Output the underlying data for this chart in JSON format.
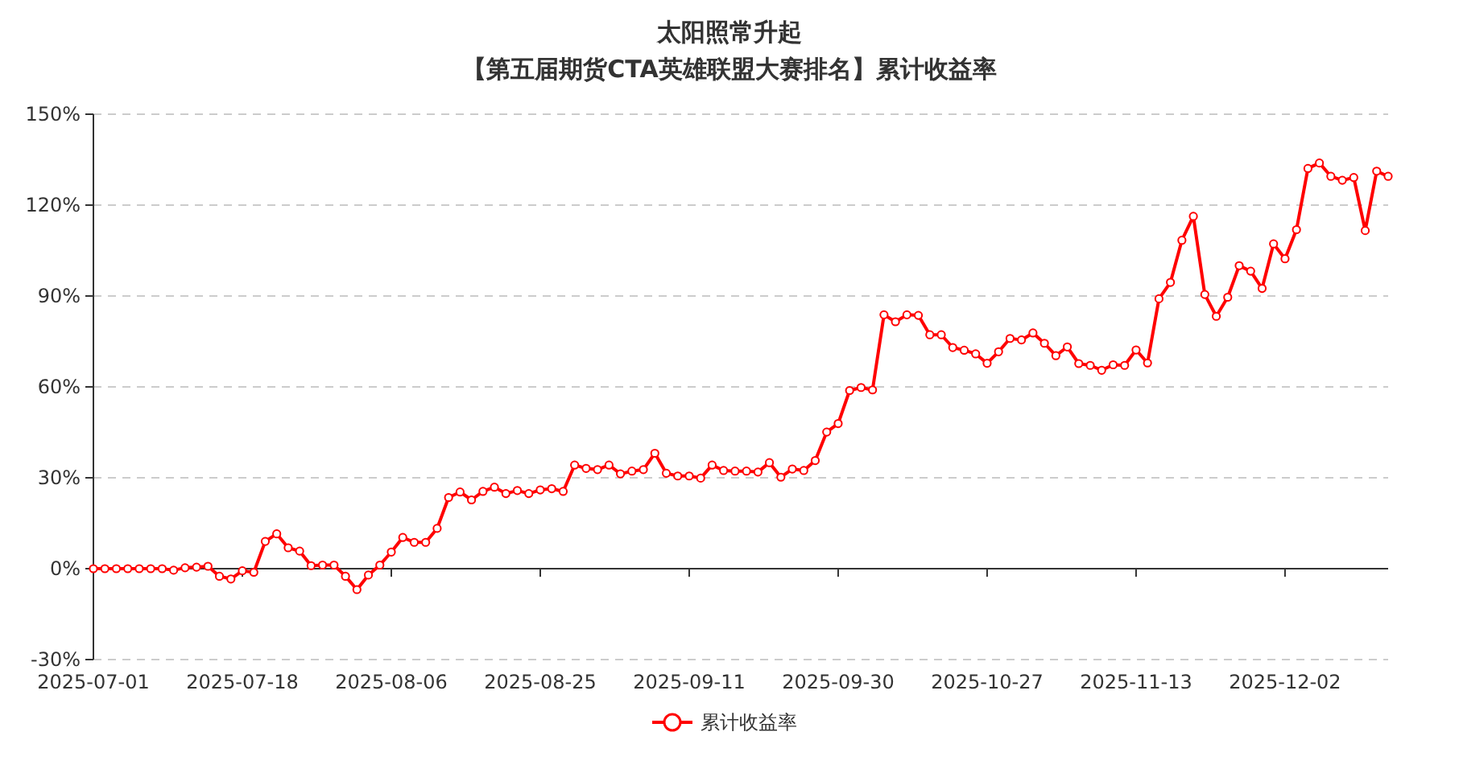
{
  "chart_data": {
    "type": "line",
    "title": "太阳照常升起",
    "subtitle": "【第五届期货CTA英雄联盟大赛排名】累计收益率",
    "categories": [
      "2025-07-01",
      null,
      null,
      null,
      null,
      null,
      null,
      null,
      null,
      null,
      null,
      null,
      null,
      "2025-07-18",
      null,
      null,
      null,
      null,
      null,
      null,
      null,
      null,
      null,
      null,
      null,
      null,
      "2025-08-06",
      null,
      null,
      null,
      null,
      null,
      null,
      null,
      null,
      null,
      null,
      null,
      null,
      "2025-08-25",
      null,
      null,
      null,
      null,
      null,
      null,
      null,
      null,
      null,
      null,
      null,
      null,
      "2025-09-11",
      null,
      null,
      null,
      null,
      null,
      null,
      null,
      null,
      null,
      null,
      null,
      null,
      "2025-09-30",
      null,
      null,
      null,
      null,
      null,
      null,
      null,
      null,
      null,
      null,
      null,
      null,
      "2025-10-27",
      null,
      null,
      null,
      null,
      null,
      null,
      null,
      null,
      null,
      null,
      null,
      null,
      "2025-11-13",
      null,
      null,
      null,
      null,
      null,
      null,
      null,
      null,
      null,
      null,
      null,
      null,
      "2025-12-02",
      null,
      null,
      null,
      null,
      null,
      null,
      null,
      null,
      null
    ],
    "series": [
      {
        "name": "累计收益率",
        "color": "#ff0000",
        "values": [
          0,
          0,
          0,
          0,
          0,
          0,
          0,
          -0.5,
          0.3,
          0.5,
          0.8,
          -2.5,
          -3.4,
          -0.7,
          -1.2,
          9,
          11.5,
          6.9,
          5.8,
          1,
          1.2,
          1.2,
          -2.5,
          -6.9,
          -2.1,
          1.2,
          5.5,
          10.3,
          8.7,
          8.7,
          13.3,
          23.5,
          25.3,
          22.7,
          25.5,
          26.9,
          24.8,
          25.8,
          24.8,
          26,
          26.4,
          25.5,
          34.2,
          33.1,
          32.7,
          34.2,
          31.3,
          32.2,
          32.7,
          38.1,
          31.5,
          30.6,
          30.6,
          29.9,
          34.2,
          32.4,
          32.2,
          32.2,
          31.9,
          35,
          30.2,
          32.9,
          32.4,
          35.7,
          45.1,
          47.9,
          58.8,
          59.8,
          59,
          83.8,
          81.5,
          83.8,
          83.6,
          77.2,
          77.2,
          73,
          72.1,
          70.9,
          67.8,
          71.6,
          76,
          75.5,
          77.8,
          74.4,
          70.3,
          73.2,
          67.7,
          67.1,
          65.5,
          67.3,
          67.1,
          72.2,
          67.9,
          89.1,
          94.5,
          108.4,
          116.3,
          90.5,
          83.3,
          89.6,
          100,
          98.2,
          92.5,
          107.2,
          102.3,
          111.9,
          132.1,
          133.9,
          129.5,
          128.2,
          129.1,
          111.6,
          131.2,
          129.5
        ]
      }
    ],
    "ylim": [
      -30,
      150
    ],
    "yticks": [
      {
        "value": -30,
        "label": "-30%"
      },
      {
        "value": 0,
        "label": "0%"
      },
      {
        "value": 30,
        "label": "30%"
      },
      {
        "value": 60,
        "label": "60%"
      },
      {
        "value": 90,
        "label": "90%"
      },
      {
        "value": 120,
        "label": "120%"
      },
      {
        "value": 150,
        "label": "150%"
      }
    ],
    "grid": "y",
    "legend": "bottom",
    "marker": "circle"
  }
}
